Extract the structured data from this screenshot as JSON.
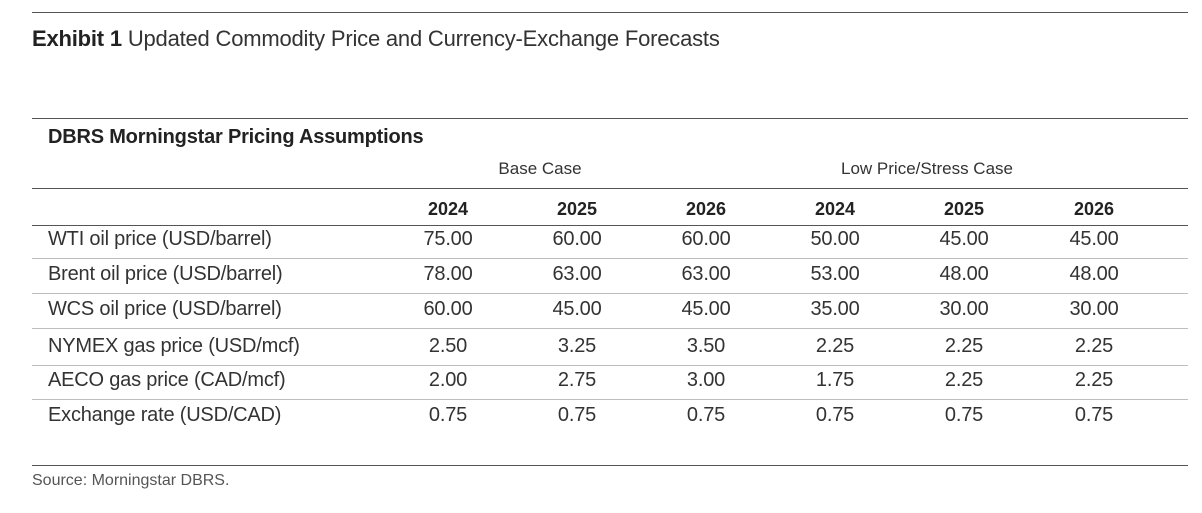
{
  "exhibit": {
    "label": "Exhibit 1",
    "title": "Updated Commodity Price and Currency-Exchange Forecasts"
  },
  "table": {
    "title": "DBRS Morningstar Pricing Assumptions",
    "groups": [
      "Base Case",
      "Low Price/Stress Case"
    ],
    "years": [
      "2024",
      "2025",
      "2026",
      "2024",
      "2025",
      "2026"
    ],
    "rows": [
      {
        "label": "WTI oil price (USD/barrel)",
        "values": [
          "75.00",
          "60.00",
          "60.00",
          "50.00",
          "45.00",
          "45.00"
        ]
      },
      {
        "label": "Brent oil price (USD/barrel)",
        "values": [
          "78.00",
          "63.00",
          "63.00",
          "53.00",
          "48.00",
          "48.00"
        ]
      },
      {
        "label": "WCS oil price (USD/barrel)",
        "values": [
          "60.00",
          "45.00",
          "45.00",
          "35.00",
          "30.00",
          "30.00"
        ]
      },
      {
        "label": "NYMEX gas price (USD/mcf)",
        "values": [
          "2.50",
          "3.25",
          "3.50",
          "2.25",
          "2.25",
          "2.25"
        ]
      },
      {
        "label": "AECO gas price (CAD/mcf)",
        "values": [
          "2.00",
          "2.75",
          "3.00",
          "1.75",
          "2.25",
          "2.25"
        ]
      },
      {
        "label": "Exchange rate (USD/CAD)",
        "values": [
          "0.75",
          "0.75",
          "0.75",
          "0.75",
          "0.75",
          "0.75"
        ]
      }
    ]
  },
  "source": "Source: Morningstar DBRS."
}
